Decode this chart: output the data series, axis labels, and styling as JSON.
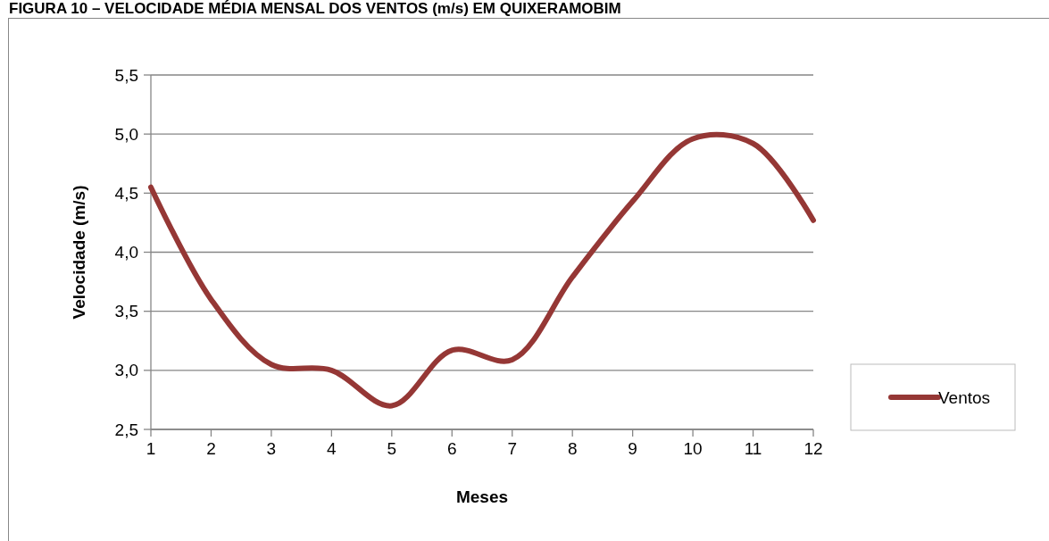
{
  "chart_data": {
    "type": "line",
    "title": "FIGURA 10 – VELOCIDADE MÉDIA MENSAL DOS VENTOS (m/s) EM QUIXERAMOBIM",
    "xlabel": "Meses",
    "ylabel": "Velocidade (m/s)",
    "x": [
      1,
      2,
      3,
      4,
      5,
      6,
      7,
      8,
      9,
      10,
      11,
      12
    ],
    "series": [
      {
        "name": "Ventos",
        "color": "#953735",
        "values": [
          4.55,
          3.6,
          3.05,
          3.0,
          2.7,
          3.17,
          3.09,
          3.79,
          4.43,
          4.96,
          4.92,
          4.27
        ]
      }
    ],
    "xlim": [
      1,
      12
    ],
    "xticks": [
      1,
      2,
      3,
      4,
      5,
      6,
      7,
      8,
      9,
      10,
      11,
      12
    ],
    "ylim": [
      2.5,
      5.5
    ],
    "yticks": [
      {
        "value": 2.5,
        "label": "2,5"
      },
      {
        "value": 3,
        "label": "3,0"
      },
      {
        "value": 3.5,
        "label": "3,5"
      },
      {
        "value": 4,
        "label": "4,0"
      },
      {
        "value": 4.5,
        "label": "4,5"
      },
      {
        "value": 5,
        "label": "5,0"
      },
      {
        "value": 5.5,
        "label": "5,5"
      }
    ],
    "grid": "y",
    "legend": "right",
    "marker": "none",
    "line_style": "solid"
  }
}
